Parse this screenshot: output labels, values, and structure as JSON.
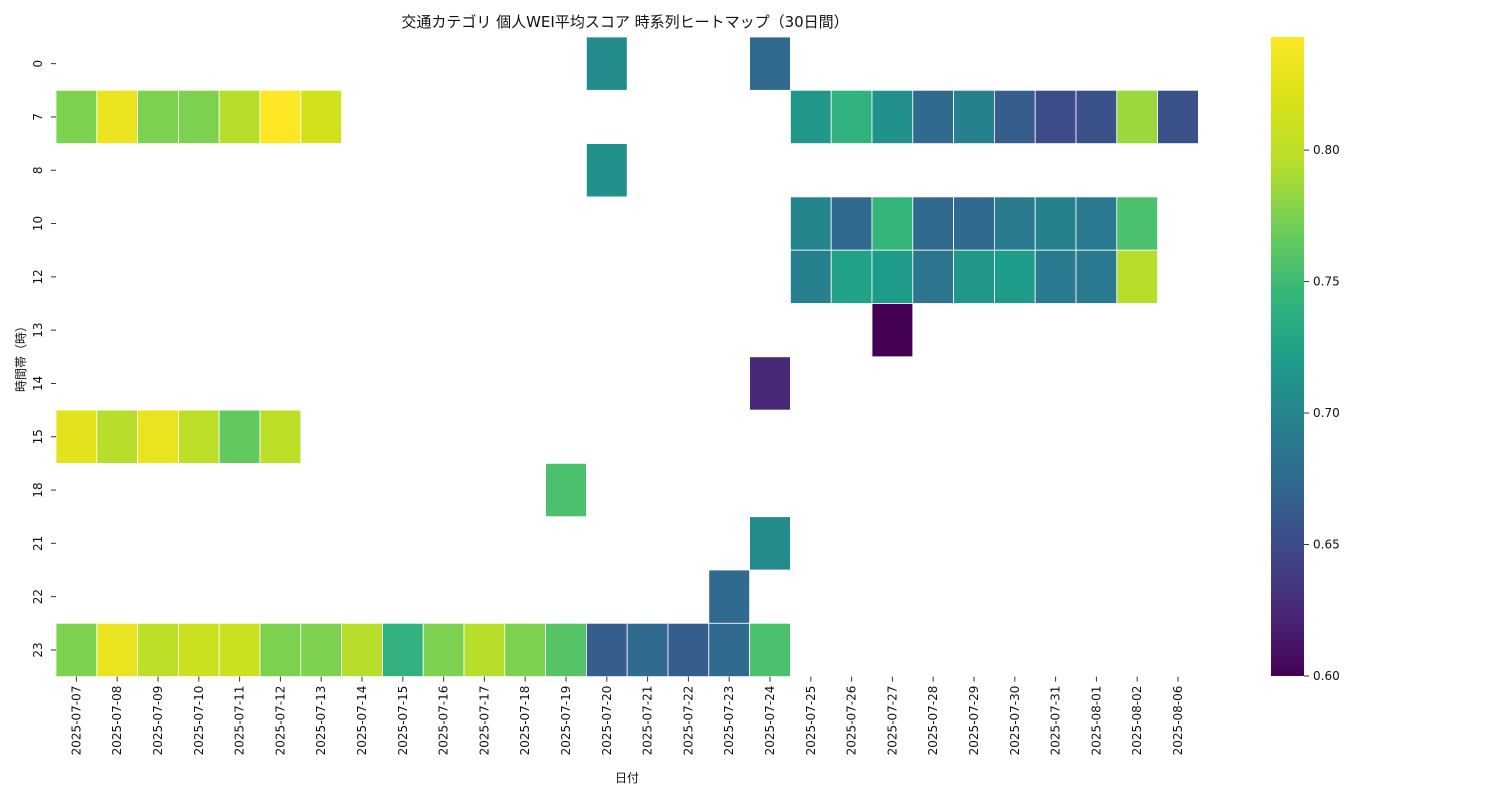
{
  "chart_data": {
    "type": "heatmap",
    "title": "交通カテゴリ 個人WEI平均スコア 時系列ヒートマップ（30日間）",
    "xlabel": "日付",
    "ylabel": "時間帯（時）",
    "colormap": "viridis",
    "vmin": 0.6,
    "vmax": 0.843,
    "colorbar_ticks": [
      "0.60",
      "0.65",
      "0.70",
      "0.75",
      "0.80"
    ],
    "x_categories": [
      "2025-07-07",
      "2025-07-08",
      "2025-07-09",
      "2025-07-10",
      "2025-07-11",
      "2025-07-12",
      "2025-07-13",
      "2025-07-14",
      "2025-07-15",
      "2025-07-16",
      "2025-07-17",
      "2025-07-18",
      "2025-07-19",
      "2025-07-20",
      "2025-07-21",
      "2025-07-22",
      "2025-07-23",
      "2025-07-24",
      "2025-07-25",
      "2025-07-26",
      "2025-07-27",
      "2025-07-28",
      "2025-07-29",
      "2025-07-30",
      "2025-07-31",
      "2025-08-01",
      "2025-08-02",
      "2025-08-06"
    ],
    "y_categories": [
      "0",
      "7",
      "8",
      "10",
      "12",
      "13",
      "14",
      "15",
      "18",
      "21",
      "22",
      "23"
    ],
    "values": [
      [
        null,
        null,
        null,
        null,
        null,
        null,
        null,
        null,
        null,
        null,
        null,
        null,
        null,
        0.705,
        null,
        null,
        null,
        0.675,
        null,
        null,
        null,
        null,
        null,
        null,
        null,
        null,
        null,
        null
      ],
      [
        0.775,
        0.83,
        0.775,
        0.775,
        0.795,
        0.843,
        0.815,
        null,
        null,
        null,
        null,
        null,
        null,
        null,
        null,
        null,
        null,
        null,
        0.715,
        0.74,
        0.71,
        0.675,
        0.695,
        0.665,
        0.65,
        0.655,
        0.785,
        0.655
      ],
      [
        null,
        null,
        null,
        null,
        null,
        null,
        null,
        null,
        null,
        null,
        null,
        null,
        null,
        0.71,
        null,
        null,
        null,
        null,
        null,
        null,
        null,
        null,
        null,
        null,
        null,
        null,
        null,
        null
      ],
      [
        null,
        null,
        null,
        null,
        null,
        null,
        null,
        null,
        null,
        null,
        null,
        null,
        null,
        null,
        null,
        null,
        null,
        null,
        0.7,
        0.675,
        0.745,
        0.675,
        0.675,
        0.69,
        0.695,
        0.69,
        0.755,
        null
      ],
      [
        null,
        null,
        null,
        null,
        null,
        null,
        null,
        null,
        null,
        null,
        null,
        null,
        null,
        null,
        null,
        null,
        null,
        null,
        0.695,
        0.725,
        0.72,
        0.685,
        0.715,
        0.72,
        0.69,
        0.69,
        0.795,
        null
      ],
      [
        null,
        null,
        null,
        null,
        null,
        null,
        null,
        null,
        null,
        null,
        null,
        null,
        null,
        null,
        null,
        null,
        null,
        null,
        null,
        null,
        0.6,
        null,
        null,
        null,
        null,
        null,
        null,
        null
      ],
      [
        null,
        null,
        null,
        null,
        null,
        null,
        null,
        null,
        null,
        null,
        null,
        null,
        null,
        null,
        null,
        null,
        null,
        0.625,
        null,
        null,
        null,
        null,
        null,
        null,
        null,
        null,
        null,
        null
      ],
      [
        0.825,
        0.795,
        0.83,
        0.8,
        0.765,
        0.8,
        null,
        null,
        null,
        null,
        null,
        null,
        null,
        null,
        null,
        null,
        null,
        null,
        null,
        null,
        null,
        null,
        null,
        null,
        null,
        null,
        null,
        null
      ],
      [
        null,
        null,
        null,
        null,
        null,
        null,
        null,
        null,
        null,
        null,
        null,
        null,
        0.755,
        null,
        null,
        null,
        null,
        null,
        null,
        null,
        null,
        null,
        null,
        null,
        null,
        null,
        null,
        null
      ],
      [
        null,
        null,
        null,
        null,
        null,
        null,
        null,
        null,
        null,
        null,
        null,
        null,
        null,
        null,
        null,
        null,
        null,
        0.705,
        null,
        null,
        null,
        null,
        null,
        null,
        null,
        null,
        null,
        null
      ],
      [
        null,
        null,
        null,
        null,
        null,
        null,
        null,
        null,
        null,
        null,
        null,
        null,
        null,
        null,
        null,
        null,
        0.675,
        null,
        null,
        null,
        null,
        null,
        null,
        null,
        null,
        null,
        null,
        null
      ],
      [
        0.775,
        0.83,
        0.8,
        0.81,
        0.81,
        0.775,
        0.775,
        0.795,
        0.74,
        0.775,
        0.795,
        0.775,
        0.76,
        0.665,
        0.675,
        0.665,
        0.675,
        0.755,
        null,
        null,
        null,
        null,
        null,
        null,
        null,
        null,
        null,
        null
      ]
    ]
  }
}
